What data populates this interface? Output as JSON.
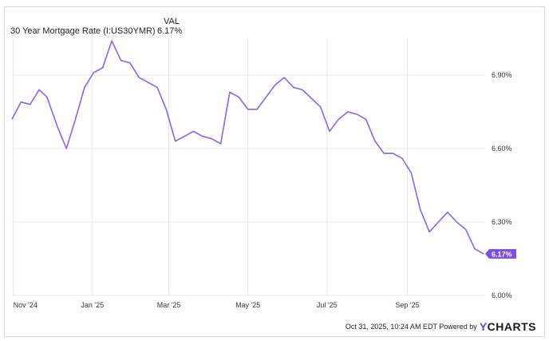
{
  "legend": {
    "series_name": "30 Year Mortgage Rate (I:US30YMR)",
    "column_header": "VAL",
    "column_value": "6.17%"
  },
  "footer": {
    "timestamp": "Oct 31, 2025, 10:24 AM EDT Powered by",
    "logo_text": "CHARTS",
    "logo_mark": "Y"
  },
  "colors": {
    "line": "#8a63e8",
    "badge": "#7b4fe0",
    "grid": "#e8e8e8"
  },
  "chart_data": {
    "type": "line",
    "title": "",
    "xlabel": "",
    "ylabel": "",
    "ylim": [
      6.0,
      7.05
    ],
    "y_ticks": [
      6.0,
      6.3,
      6.6,
      6.9
    ],
    "y_tick_labels": [
      "6.00%",
      "6.30%",
      "6.60%",
      "6.90%"
    ],
    "x_range": [
      "2024-10-31",
      "2025-10-31"
    ],
    "x_ticks": [
      "2024-11-01",
      "2025-01-01",
      "2025-03-01",
      "2025-05-01",
      "2025-07-01",
      "2025-09-01"
    ],
    "x_tick_labels": [
      "Nov '24",
      "Jan '25",
      "Mar '25",
      "May '25",
      "Jul '25",
      "Sep '25"
    ],
    "grid": true,
    "last_value_label": "6.17%",
    "series": [
      {
        "name": "30 Year Mortgage Rate (I:US30YMR)",
        "x": [
          "2024-10-31",
          "2024-11-07",
          "2024-11-14",
          "2024-11-21",
          "2024-11-27",
          "2024-12-05",
          "2024-12-12",
          "2024-12-19",
          "2024-12-26",
          "2025-01-02",
          "2025-01-09",
          "2025-01-16",
          "2025-01-23",
          "2025-01-30",
          "2025-02-06",
          "2025-02-13",
          "2025-02-20",
          "2025-02-27",
          "2025-03-06",
          "2025-03-13",
          "2025-03-20",
          "2025-03-27",
          "2025-04-03",
          "2025-04-10",
          "2025-04-17",
          "2025-04-24",
          "2025-05-01",
          "2025-05-08",
          "2025-05-15",
          "2025-05-22",
          "2025-05-29",
          "2025-06-05",
          "2025-06-12",
          "2025-06-18",
          "2025-06-26",
          "2025-07-03",
          "2025-07-10",
          "2025-07-17",
          "2025-07-24",
          "2025-07-31",
          "2025-08-07",
          "2025-08-14",
          "2025-08-21",
          "2025-08-28",
          "2025-09-04",
          "2025-09-11",
          "2025-09-18",
          "2025-09-25",
          "2025-10-02",
          "2025-10-09",
          "2025-10-16",
          "2025-10-23",
          "2025-10-30"
        ],
        "y": [
          6.72,
          6.79,
          6.78,
          6.84,
          6.81,
          6.69,
          6.6,
          6.72,
          6.85,
          6.91,
          6.93,
          7.04,
          6.96,
          6.95,
          6.89,
          6.87,
          6.85,
          6.76,
          6.63,
          6.65,
          6.67,
          6.65,
          6.64,
          6.62,
          6.83,
          6.81,
          6.76,
          6.76,
          6.81,
          6.86,
          6.89,
          6.85,
          6.84,
          6.81,
          6.77,
          6.67,
          6.72,
          6.75,
          6.74,
          6.72,
          6.63,
          6.58,
          6.58,
          6.56,
          6.5,
          6.35,
          6.26,
          6.3,
          6.34,
          6.3,
          6.27,
          6.19,
          6.17
        ]
      }
    ]
  }
}
